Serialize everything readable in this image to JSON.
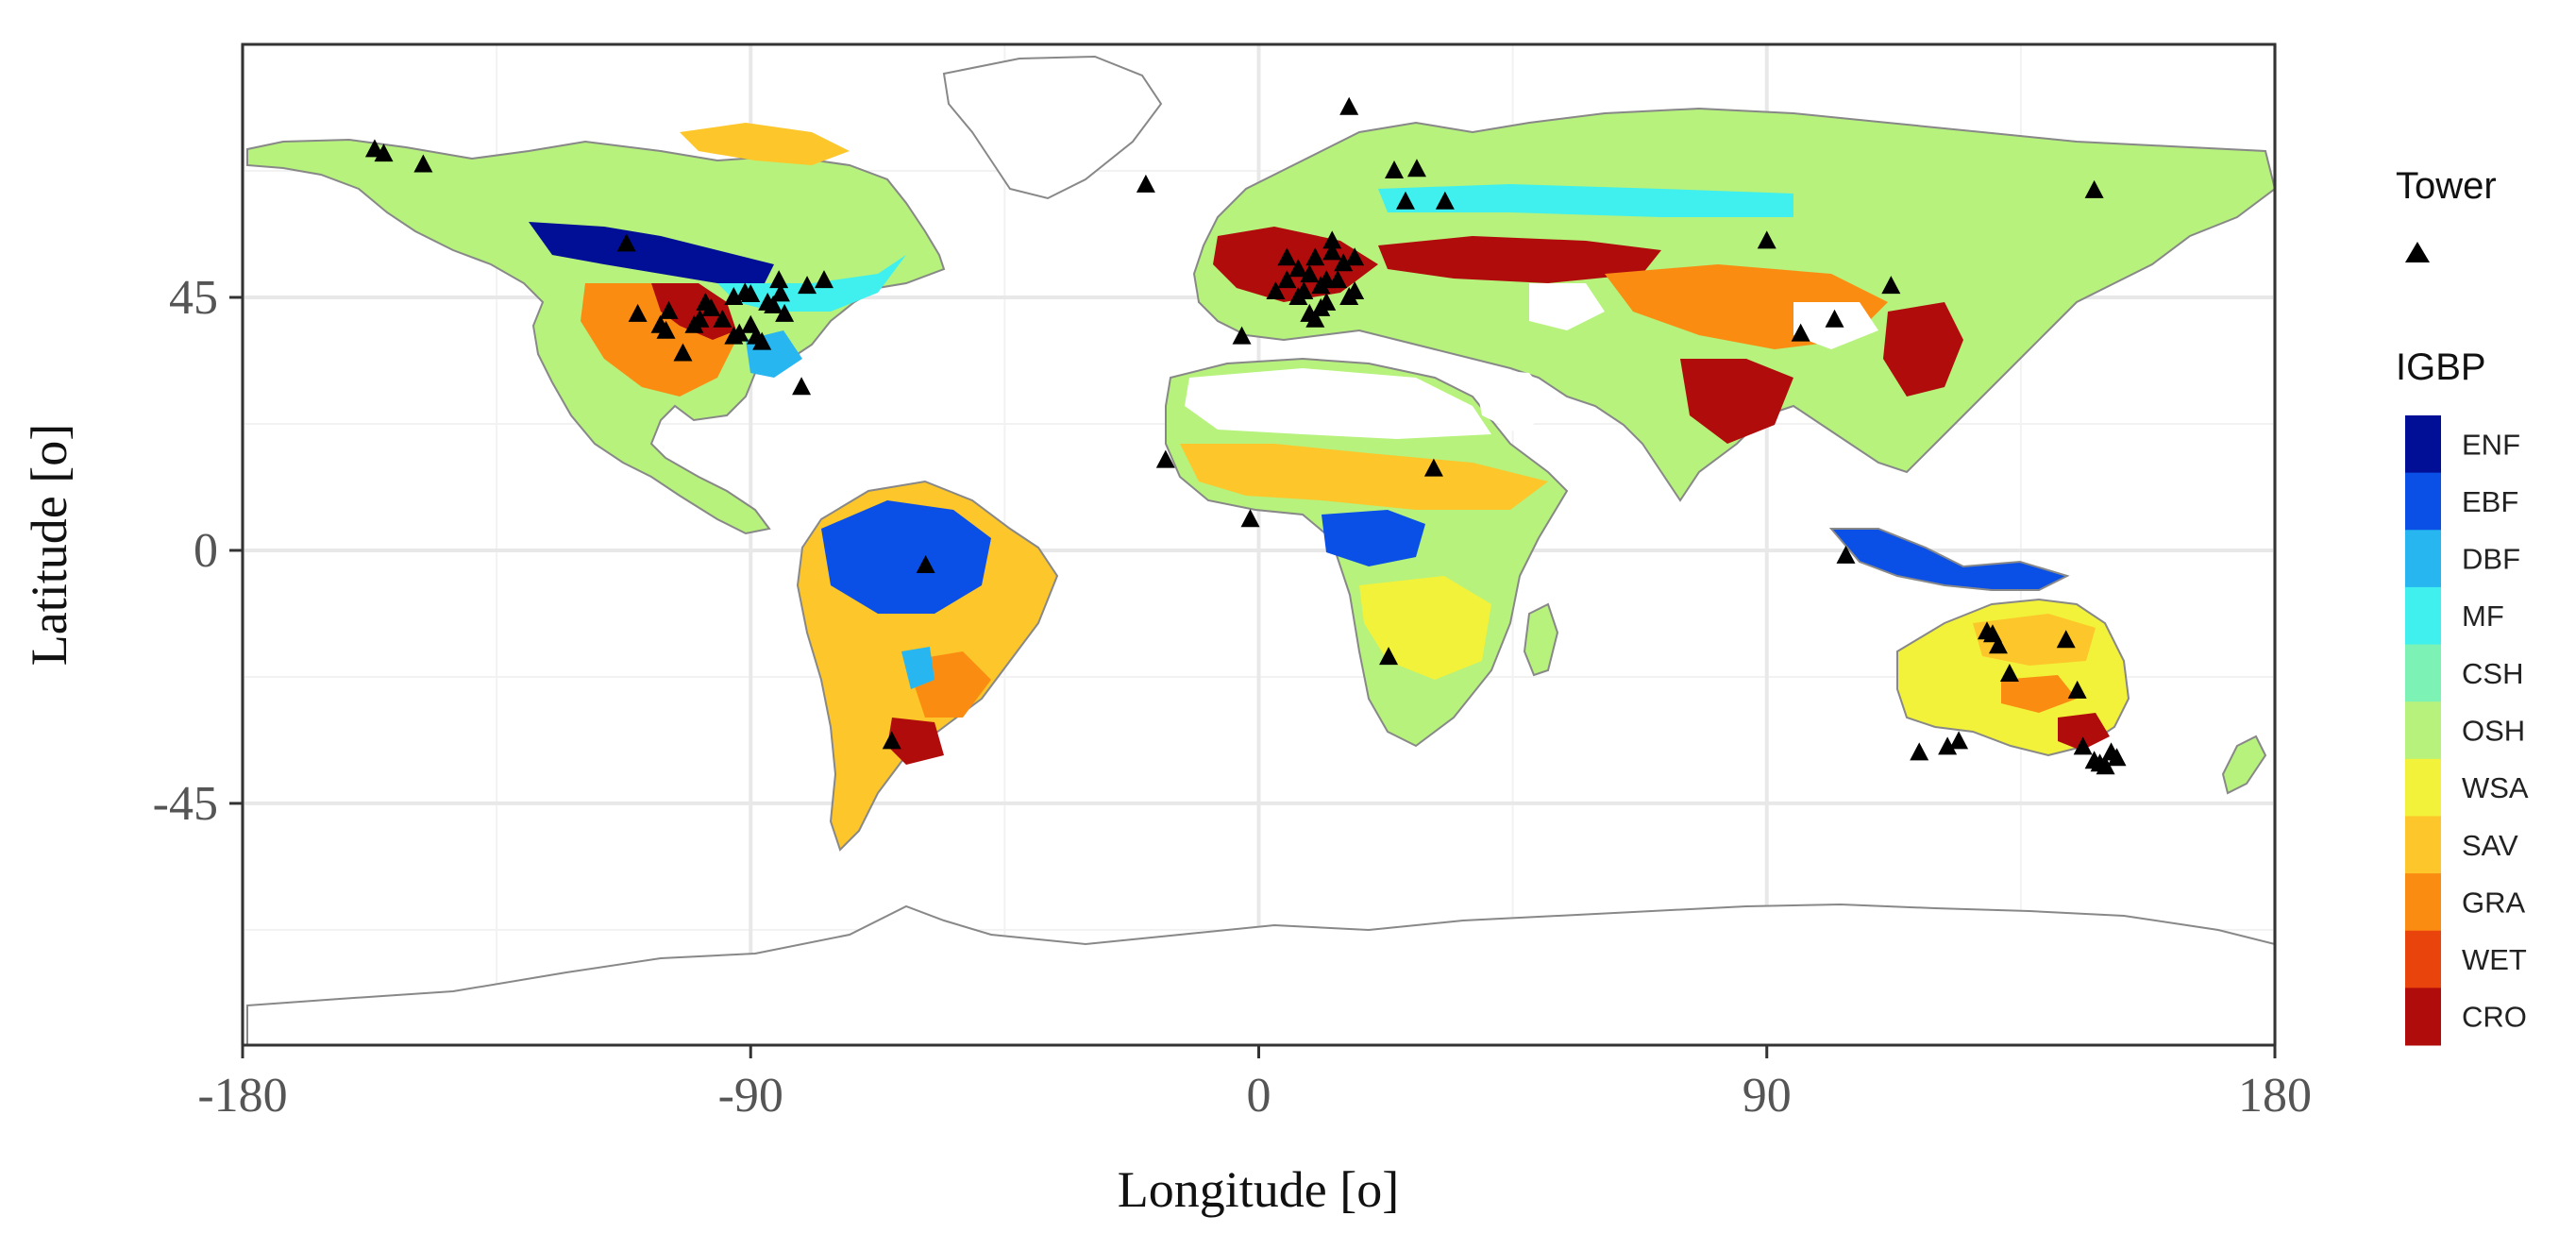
{
  "figure": {
    "xlabel": "Longitude [o]",
    "ylabel": "Latitude [o]",
    "x_ticks": [
      {
        "value": -180,
        "label": "-180"
      },
      {
        "value": -90,
        "label": "-90"
      },
      {
        "value": 0,
        "label": "0"
      },
      {
        "value": 90,
        "label": "90"
      },
      {
        "value": 180,
        "label": "180"
      }
    ],
    "y_ticks": [
      {
        "value": 45,
        "label": "45"
      },
      {
        "value": 0,
        "label": "0"
      },
      {
        "value": -45,
        "label": "-45"
      }
    ],
    "xlim": [
      -180,
      180
    ],
    "ylim": [
      -88,
      90
    ],
    "grid": true
  },
  "legend": {
    "tower_title": "Tower",
    "igbp_title": "IGBP",
    "classes": [
      {
        "label": "ENF",
        "color": "#000f96"
      },
      {
        "label": "EBF",
        "color": "#0a4fe6"
      },
      {
        "label": "DBF",
        "color": "#27b6f0"
      },
      {
        "label": "MF",
        "color": "#3ff0ee"
      },
      {
        "label": "CSH",
        "color": "#7cf2b4"
      },
      {
        "label": "OSH",
        "color": "#b6f27c"
      },
      {
        "label": "WSA",
        "color": "#f2f23a"
      },
      {
        "label": "SAV",
        "color": "#fdc62a"
      },
      {
        "label": "GRA",
        "color": "#fb8c12"
      },
      {
        "label": "WET",
        "color": "#e9440c"
      },
      {
        "label": "CRO",
        "color": "#b10c0c"
      }
    ]
  },
  "towers": [
    [
      -156.6,
      71.3
    ],
    [
      -155,
      70.5
    ],
    [
      -148,
      68.6
    ],
    [
      -112,
      54.5
    ],
    [
      -104.5,
      42.5
    ],
    [
      -106,
      40
    ],
    [
      -105,
      39
    ],
    [
      -102,
      35
    ],
    [
      -100,
      40
    ],
    [
      -98,
      44
    ],
    [
      -97,
      43
    ],
    [
      -95,
      41
    ],
    [
      -93,
      45
    ],
    [
      -91,
      45.8
    ],
    [
      -90,
      45.5
    ],
    [
      -90,
      40
    ],
    [
      -89,
      38
    ],
    [
      -88,
      37
    ],
    [
      -86,
      43.5
    ],
    [
      -84.7,
      45.6
    ],
    [
      -84,
      42
    ],
    [
      -81,
      29
    ],
    [
      -80,
      47
    ],
    [
      -93,
      38
    ],
    [
      -92,
      38.5
    ],
    [
      -110,
      42
    ],
    [
      -77,
      48
    ],
    [
      -99,
      41
    ],
    [
      -85,
      48
    ],
    [
      -87,
      44
    ],
    [
      -59,
      -2.7
    ],
    [
      -65,
      -34
    ],
    [
      -16.5,
      16
    ],
    [
      -1.5,
      5.5
    ],
    [
      -3,
      38
    ],
    [
      3,
      46
    ],
    [
      5,
      48
    ],
    [
      7,
      50
    ],
    [
      9,
      49
    ],
    [
      10,
      52
    ],
    [
      11,
      47
    ],
    [
      12,
      44
    ],
    [
      13,
      55
    ],
    [
      15,
      51
    ],
    [
      17,
      52
    ],
    [
      8,
      46
    ],
    [
      11,
      43
    ],
    [
      14,
      48
    ],
    [
      16,
      45
    ],
    [
      12,
      48
    ],
    [
      9,
      42
    ],
    [
      13,
      53
    ],
    [
      5,
      52
    ],
    [
      7,
      45
    ],
    [
      10,
      41
    ],
    [
      17,
      46
    ],
    [
      26,
      62
    ],
    [
      24,
      67.5
    ],
    [
      28,
      67.8
    ],
    [
      16,
      78.8
    ],
    [
      -20,
      65
    ],
    [
      33,
      62
    ],
    [
      31,
      14.5
    ],
    [
      23,
      -19
    ],
    [
      90,
      55
    ],
    [
      102,
      41
    ],
    [
      96,
      38.5
    ],
    [
      112,
      47
    ],
    [
      104,
      -1
    ],
    [
      129,
      -14.5
    ],
    [
      130,
      -15
    ],
    [
      131,
      -17
    ],
    [
      133,
      -22
    ],
    [
      143,
      -16
    ],
    [
      145,
      -25
    ],
    [
      146,
      -35
    ],
    [
      148,
      -37.5
    ],
    [
      150,
      -38.5
    ],
    [
      151,
      -36
    ],
    [
      152,
      -37
    ],
    [
      149,
      -38
    ],
    [
      122,
      -35
    ],
    [
      124,
      -34
    ],
    [
      117,
      -36
    ],
    [
      148,
      64
    ]
  ]
}
